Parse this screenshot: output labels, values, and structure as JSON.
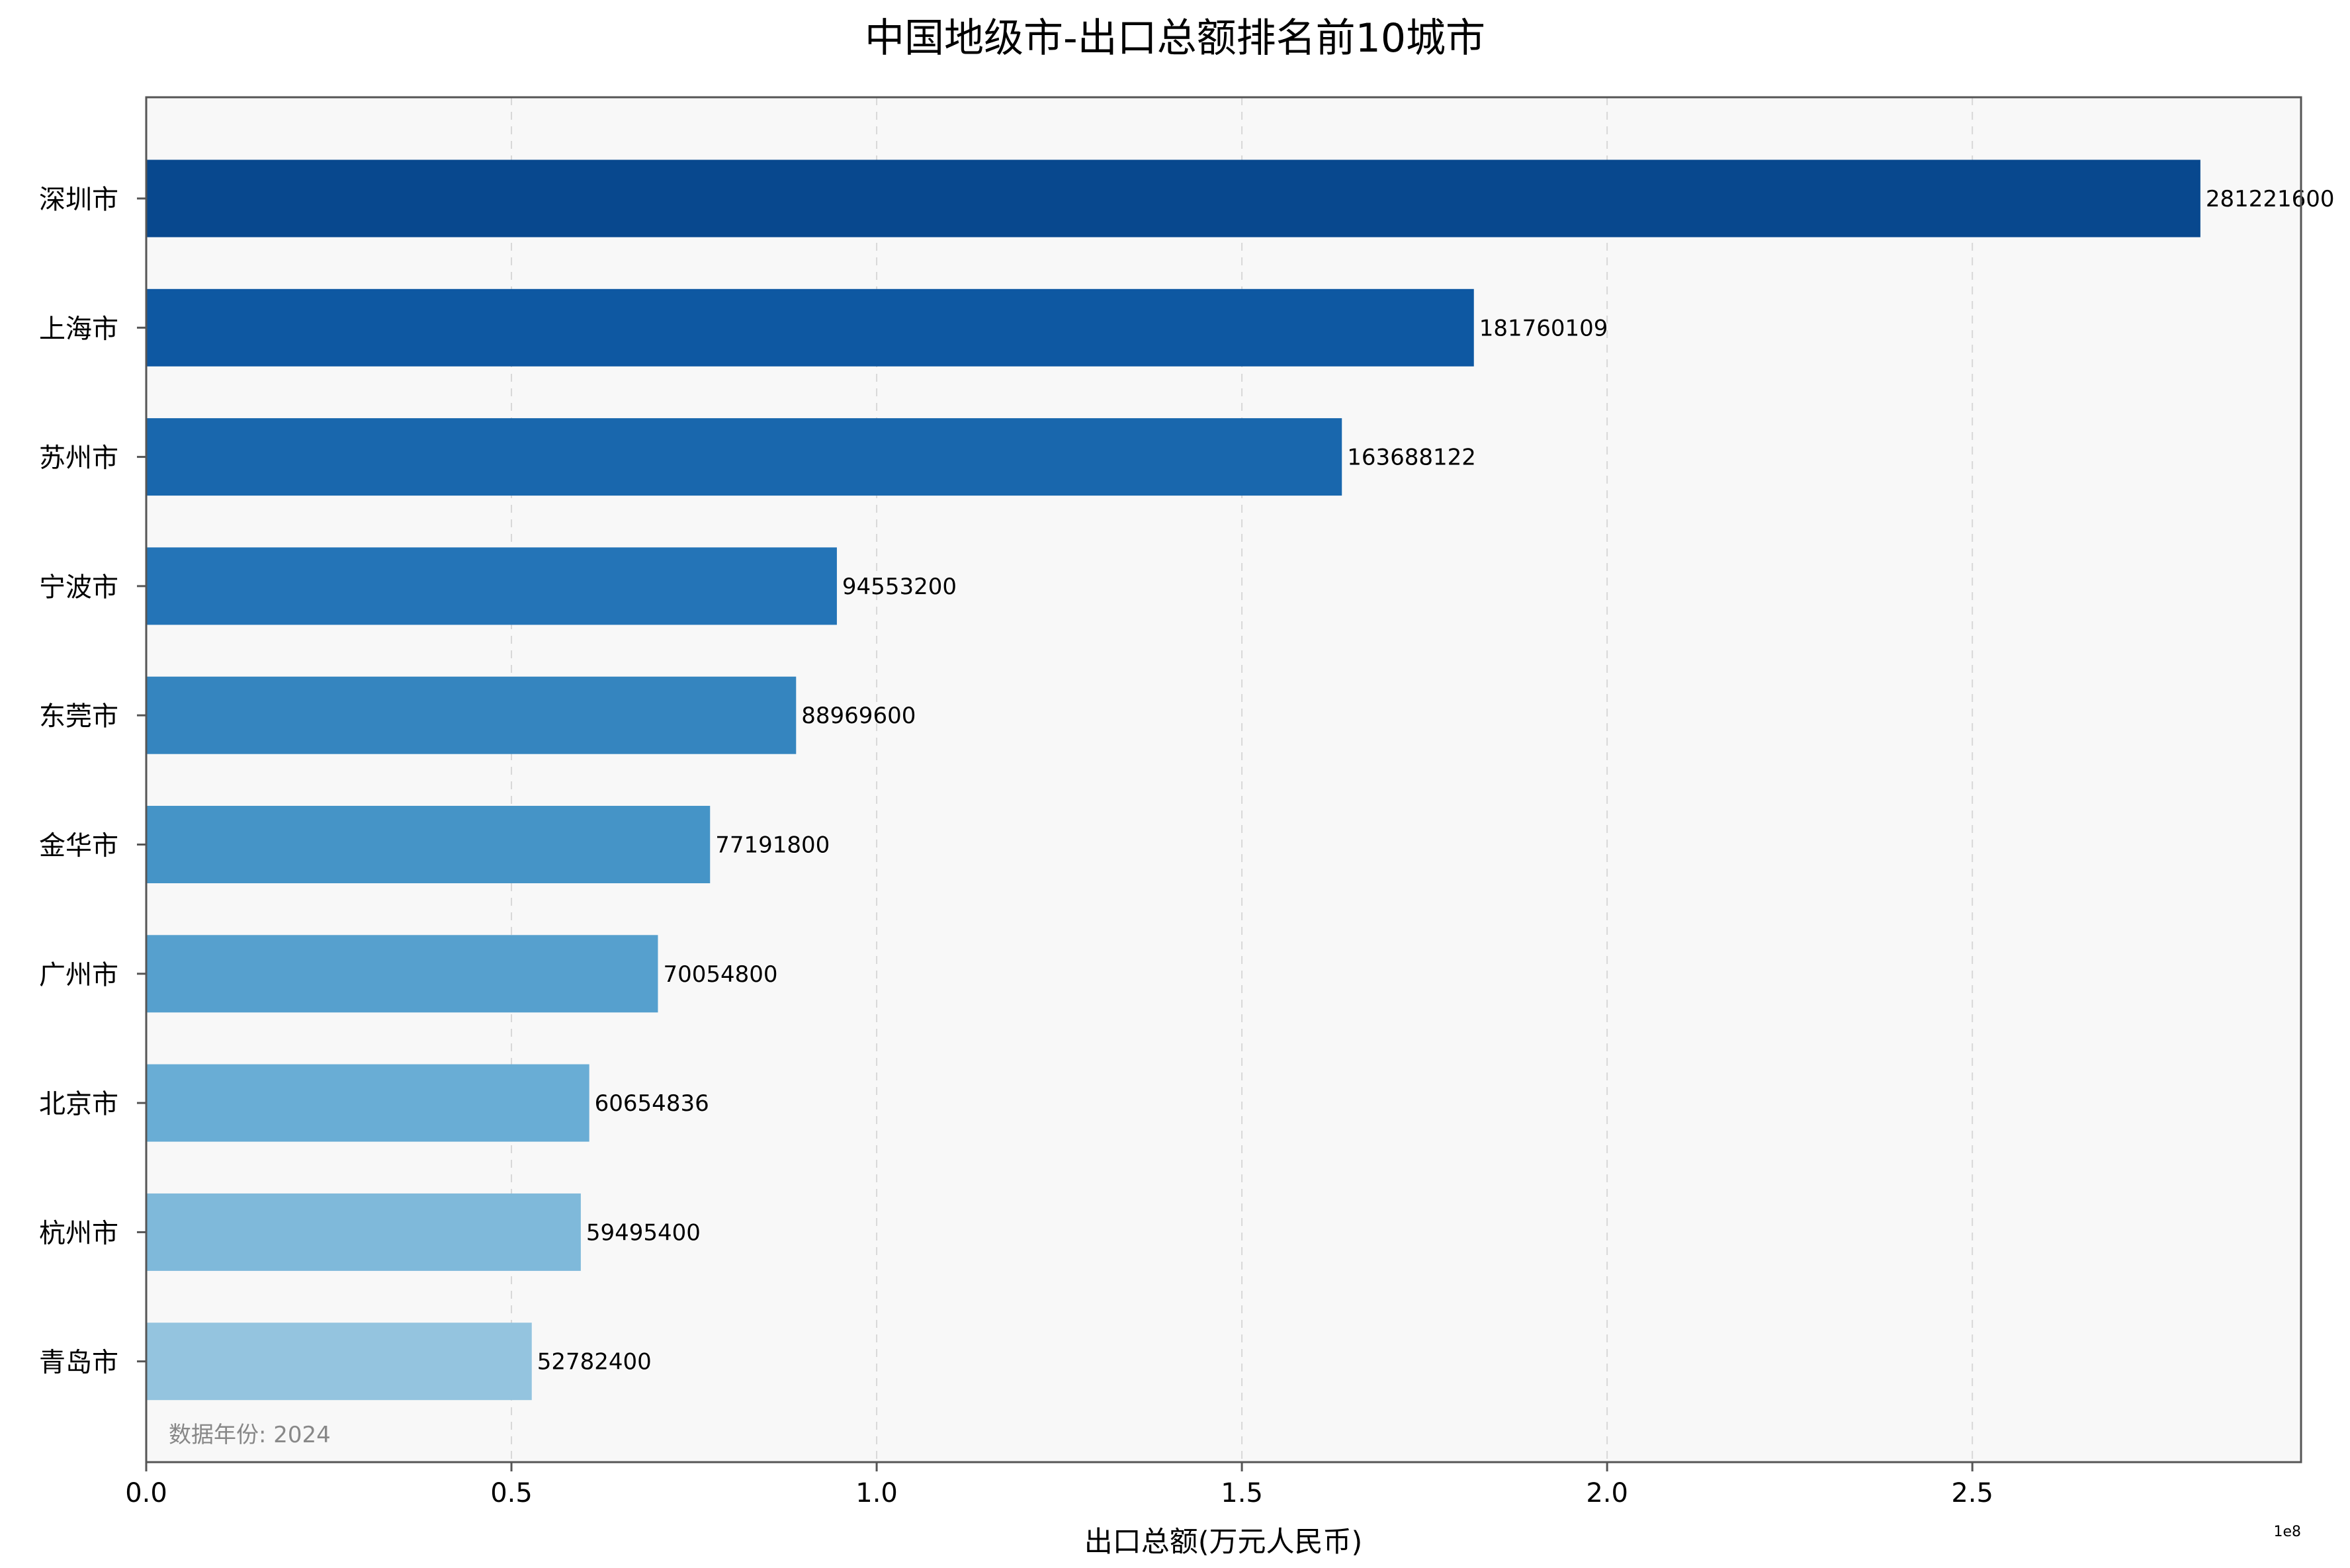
{
  "chart_data": {
    "type": "bar",
    "orientation": "horizontal",
    "title": "中国地级市-出口总额排名前10城市",
    "xlabel": "出口总额(万元人民币)",
    "ylabel": "",
    "x_offset_label": "1e8",
    "x_scale": 100000000,
    "xlim": [
      0,
      295000000
    ],
    "xticks": [
      0,
      50000000,
      100000000,
      150000000,
      200000000,
      250000000
    ],
    "xtick_labels": [
      "0.0",
      "0.5",
      "1.0",
      "1.5",
      "2.0",
      "2.5"
    ],
    "grid": "x-dashed",
    "categories": [
      "深圳市",
      "上海市",
      "苏州市",
      "宁波市",
      "东莞市",
      "金华市",
      "广州市",
      "北京市",
      "杭州市",
      "青岛市"
    ],
    "values": [
      281221600,
      181760109,
      163688122,
      94553200,
      88969600,
      77191800,
      70054800,
      60654836,
      59495400,
      52782400
    ],
    "colors": [
      "#08488e",
      "#0e58a2",
      "#1967ad",
      "#2474b7",
      "#3585bf",
      "#4594c7",
      "#56a0ce",
      "#69add5",
      "#7fb9da",
      "#94c4df"
    ],
    "annotation": "数据年份: 2024"
  },
  "colors": {
    "plot_background": "#f8f8f8",
    "axes_edge": "#555555",
    "grid": "#d8d8d8"
  }
}
